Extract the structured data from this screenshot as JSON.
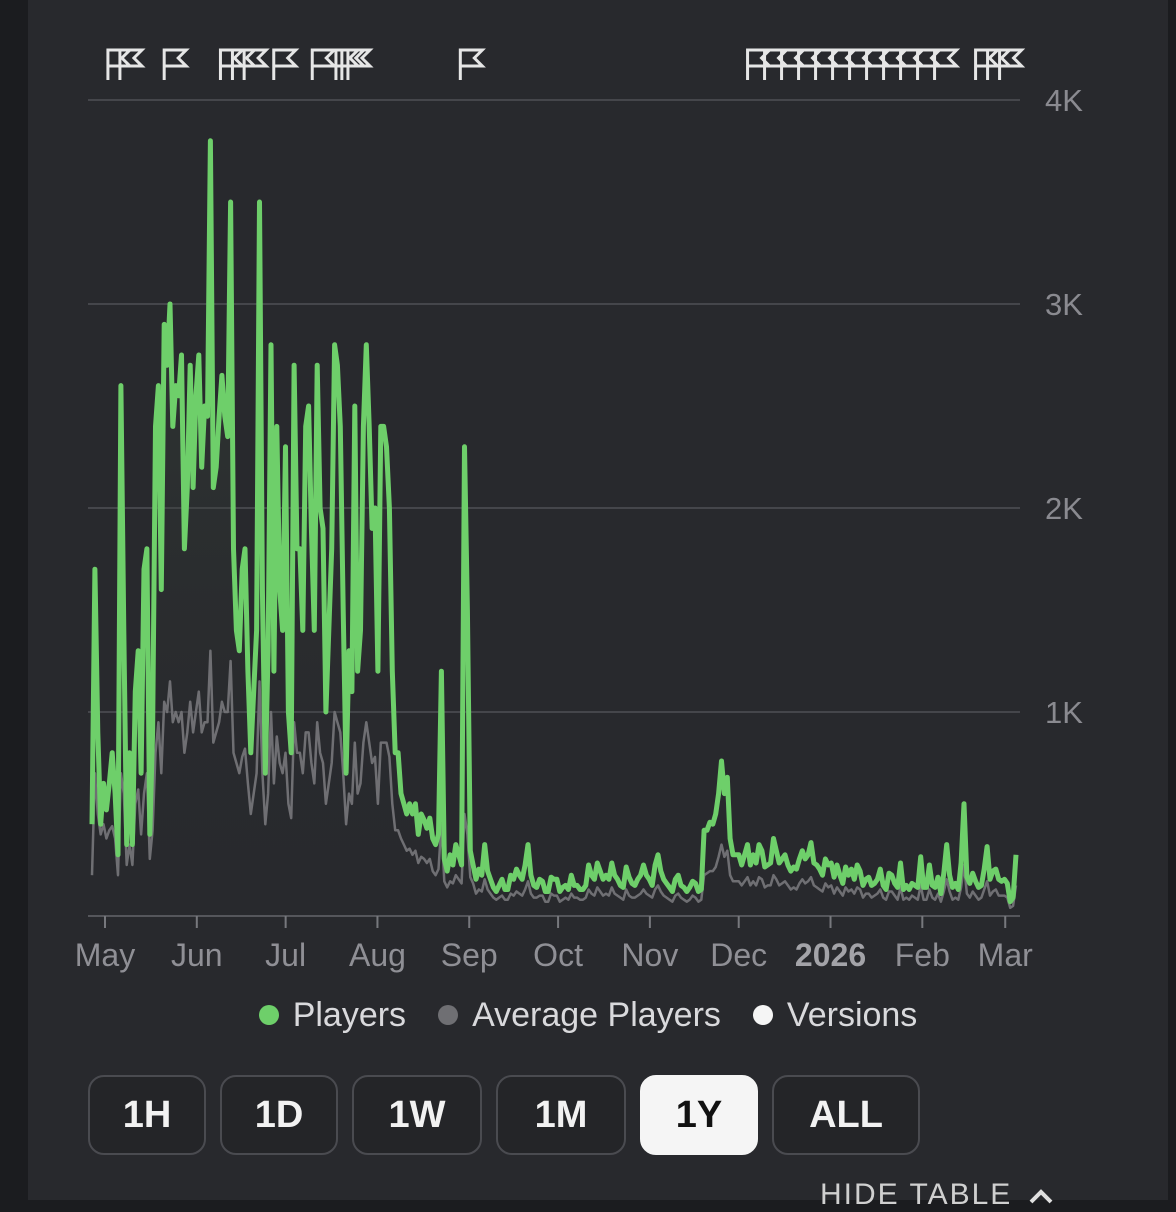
{
  "chart_data": {
    "type": "line",
    "x_axis": {
      "tick_labels": [
        "May",
        "Jun",
        "Jul",
        "Aug",
        "Sep",
        "Oct",
        "Nov",
        "Dec",
        "2026",
        "Feb",
        "Mar"
      ],
      "range": [
        "2025-05",
        "2026-03"
      ]
    },
    "y_axis": {
      "tick_labels": [
        "1K",
        "2K",
        "3K",
        "4K"
      ],
      "ticks": [
        1000,
        2000,
        3000,
        4000
      ],
      "range": [
        0,
        4000
      ],
      "grid": true,
      "position": "right"
    },
    "legend": {
      "placement": "bottom-center",
      "entries": [
        {
          "name": "Players",
          "color": "#6ecf6a"
        },
        {
          "name": "Average Players",
          "color": "#6f6f73"
        },
        {
          "name": "Versions",
          "color": "#f5f5f5"
        }
      ]
    },
    "series": [
      {
        "name": "Players",
        "color": "#6ecf6a",
        "values": [
          450,
          1700,
          900,
          450,
          650,
          520,
          650,
          800,
          600,
          300,
          2600,
          1400,
          350,
          800,
          350,
          1100,
          1300,
          700,
          1700,
          1800,
          400,
          900,
          2400,
          2600,
          1600,
          2900,
          2700,
          3000,
          2400,
          2600,
          2550,
          2750,
          1800,
          2100,
          2700,
          2100,
          2550,
          2750,
          2200,
          2500,
          2450,
          3800,
          2100,
          2200,
          2450,
          2650,
          2450,
          2350,
          3500,
          1800,
          1400,
          1300,
          1700,
          1800,
          1200,
          800,
          1100,
          1400,
          3500,
          1600,
          700,
          1300,
          2800,
          1200,
          2400,
          1600,
          1400,
          2300,
          1000,
          800,
          2700,
          1800,
          1800,
          1400,
          2400,
          2500,
          1900,
          1400,
          2700,
          2000,
          1900,
          1000,
          1400,
          1800,
          2800,
          2700,
          2400,
          1500,
          700,
          1300,
          1100,
          2500,
          1200,
          1400,
          2400,
          2800,
          2400,
          1900,
          2000,
          1200,
          2400,
          2400,
          2300,
          2000,
          1200,
          800,
          800,
          600,
          550,
          500,
          550,
          500,
          550,
          400,
          500,
          470,
          430,
          480,
          380,
          350,
          400,
          1200,
          280,
          220,
          300,
          250,
          350,
          300,
          250,
          2300,
          1500,
          320,
          250,
          180,
          230,
          200,
          350,
          220,
          180,
          140,
          120,
          150,
          180,
          130,
          130,
          200,
          180,
          230,
          200,
          180,
          250,
          350,
          200,
          150,
          140,
          180,
          170,
          120,
          120,
          190,
          180,
          180,
          120,
          140,
          150,
          130,
          200,
          150,
          150,
          130,
          130,
          150,
          250,
          200,
          180,
          260,
          220,
          180,
          200,
          180,
          260,
          200,
          180,
          150,
          140,
          240,
          190,
          160,
          150,
          180,
          200,
          250,
          200,
          180,
          150,
          250,
          300,
          220,
          180,
          160,
          140,
          120,
          180,
          200,
          150,
          140,
          120,
          140,
          170,
          160,
          120,
          130,
          420,
          420,
          460,
          450,
          500,
          600,
          760,
          600,
          680,
          380,
          300,
          300,
          300,
          250,
          300,
          350,
          250,
          300,
          260,
          350,
          320,
          240,
          250,
          260,
          380,
          320,
          260,
          280,
          300,
          250,
          220,
          240,
          230,
          280,
          320,
          280,
          300,
          360,
          260,
          250,
          230,
          200,
          280,
          250,
          260,
          190,
          250,
          200,
          160,
          240,
          200,
          230,
          180,
          250,
          220,
          150,
          180,
          190,
          150,
          160,
          180,
          230,
          150,
          130,
          210,
          200,
          160,
          140,
          260,
          130,
          150,
          130,
          160,
          150,
          140,
          290,
          140,
          140,
          250,
          150,
          140,
          190,
          110,
          210,
          350,
          200,
          140,
          160,
          130,
          260,
          550,
          190,
          160,
          210,
          170,
          140,
          150,
          230,
          340,
          180,
          220,
          230,
          180,
          170,
          180,
          160,
          70,
          90,
          300
        ]
      },
      {
        "name": "Average Players",
        "color": "#6f6f73",
        "values": [
          200,
          700,
          500,
          400,
          450,
          380,
          420,
          440,
          380,
          200,
          700,
          600,
          250,
          350,
          250,
          550,
          620,
          400,
          600,
          700,
          280,
          420,
          800,
          950,
          700,
          1050,
          1000,
          1150,
          950,
          1000,
          950,
          1000,
          800,
          900,
          1050,
          900,
          1000,
          1100,
          900,
          950,
          950,
          1300,
          850,
          900,
          950,
          1050,
          1000,
          1000,
          1250,
          800,
          750,
          700,
          780,
          820,
          650,
          500,
          600,
          700,
          1150,
          700,
          450,
          600,
          1000,
          650,
          880,
          750,
          700,
          800,
          550,
          480,
          950,
          800,
          800,
          700,
          900,
          900,
          750,
          650,
          950,
          800,
          750,
          550,
          650,
          750,
          1000,
          950,
          900,
          700,
          450,
          600,
          550,
          850,
          600,
          650,
          850,
          950,
          850,
          750,
          780,
          550,
          850,
          850,
          850,
          780,
          550,
          420,
          420,
          380,
          350,
          320,
          330,
          300,
          320,
          260,
          290,
          280,
          260,
          280,
          220,
          200,
          230,
          450,
          170,
          140,
          170,
          160,
          200,
          180,
          160,
          500,
          400,
          190,
          160,
          110,
          130,
          120,
          180,
          130,
          110,
          90,
          80,
          90,
          100,
          80,
          80,
          110,
          100,
          120,
          110,
          100,
          130,
          170,
          110,
          90,
          90,
          100,
          100,
          70,
          70,
          110,
          100,
          100,
          70,
          80,
          90,
          80,
          110,
          90,
          90,
          80,
          80,
          90,
          130,
          110,
          100,
          140,
          120,
          100,
          110,
          100,
          140,
          110,
          100,
          90,
          80,
          130,
          100,
          90,
          90,
          100,
          110,
          130,
          110,
          100,
          90,
          130,
          150,
          120,
          100,
          90,
          80,
          70,
          100,
          110,
          90,
          80,
          70,
          80,
          100,
          90,
          70,
          80,
          200,
          210,
          220,
          220,
          240,
          290,
          350,
          290,
          320,
          200,
          170,
          170,
          170,
          150,
          170,
          190,
          150,
          170,
          150,
          190,
          180,
          140,
          150,
          150,
          200,
          180,
          150,
          160,
          170,
          150,
          130,
          140,
          130,
          160,
          180,
          160,
          170,
          190,
          150,
          140,
          130,
          120,
          160,
          140,
          150,
          110,
          140,
          120,
          100,
          140,
          120,
          130,
          110,
          140,
          130,
          90,
          110,
          110,
          90,
          100,
          110,
          130,
          90,
          80,
          120,
          120,
          100,
          80,
          140,
          80,
          90,
          80,
          100,
          90,
          80,
          150,
          80,
          80,
          130,
          90,
          80,
          110,
          70,
          120,
          180,
          120,
          80,
          90,
          80,
          140,
          250,
          110,
          90,
          120,
          100,
          80,
          90,
          130,
          170,
          100,
          120,
          130,
          100,
          100,
          100,
          90,
          40,
          50,
          150
        ]
      }
    ],
    "versions_markers": [
      {
        "date": "2025-05-03",
        "count": 2
      },
      {
        "date": "2025-05-22",
        "count": 1
      },
      {
        "date": "2025-06-10",
        "count": 2
      },
      {
        "date": "2025-06-18",
        "count": 1
      },
      {
        "date": "2025-06-28",
        "count": 1
      },
      {
        "date": "2025-07-11",
        "count": 1
      },
      {
        "date": "2025-07-19",
        "count": 2
      },
      {
        "date": "2025-07-21",
        "count": 1
      },
      {
        "date": "2025-08-30",
        "count": 1
      },
      {
        "date": "2025-12-05",
        "count": 12
      },
      {
        "date": "2026-02-20",
        "count": 3
      }
    ]
  },
  "time_ranges": [
    "1H",
    "1D",
    "1W",
    "1M",
    "1Y",
    "ALL"
  ],
  "active_range": "1Y",
  "hide_table_label": "HIDE TABLE"
}
